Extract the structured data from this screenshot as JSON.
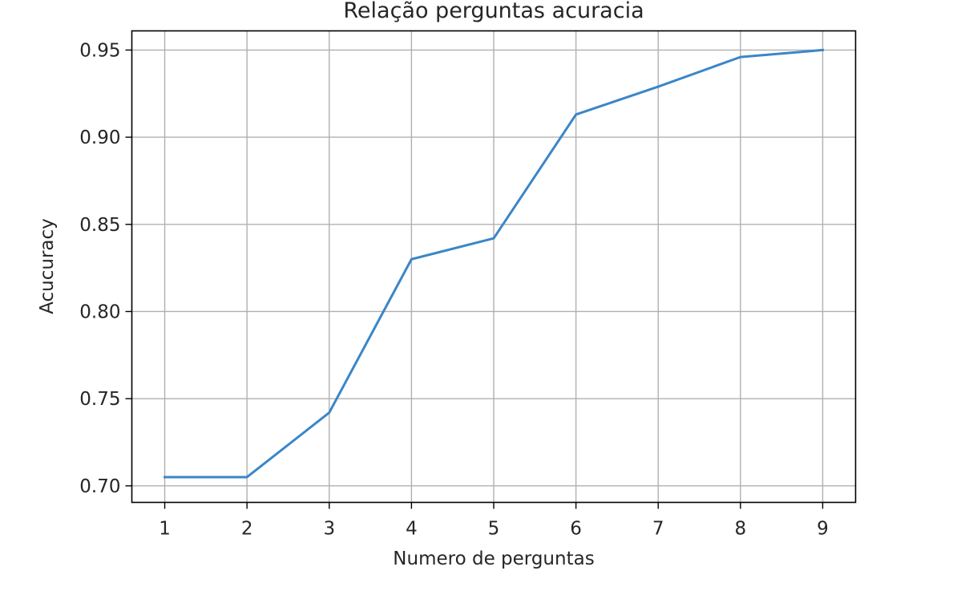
{
  "chart_data": {
    "type": "line",
    "title": "Relação perguntas acuracia",
    "xlabel": "Numero de perguntas",
    "ylabel": "Acucuracy",
    "xlim": [
      0.6,
      9.4
    ],
    "ylim": [
      0.6905,
      0.961
    ],
    "x_ticks": [
      1,
      2,
      3,
      4,
      5,
      6,
      7,
      8,
      9
    ],
    "x_tick_labels": [
      "1",
      "2",
      "3",
      "4",
      "5",
      "6",
      "7",
      "8",
      "9"
    ],
    "y_ticks": [
      0.7,
      0.75,
      0.8,
      0.85,
      0.9,
      0.95
    ],
    "y_tick_labels": [
      "0.70",
      "0.75",
      "0.80",
      "0.85",
      "0.90",
      "0.95"
    ],
    "grid": true,
    "series": [
      {
        "color": "#3a86c8",
        "x": [
          1,
          2,
          3,
          4,
          5,
          6,
          7,
          8,
          9
        ],
        "y": [
          0.705,
          0.705,
          0.742,
          0.83,
          0.842,
          0.913,
          0.929,
          0.946,
          0.95
        ]
      }
    ]
  }
}
